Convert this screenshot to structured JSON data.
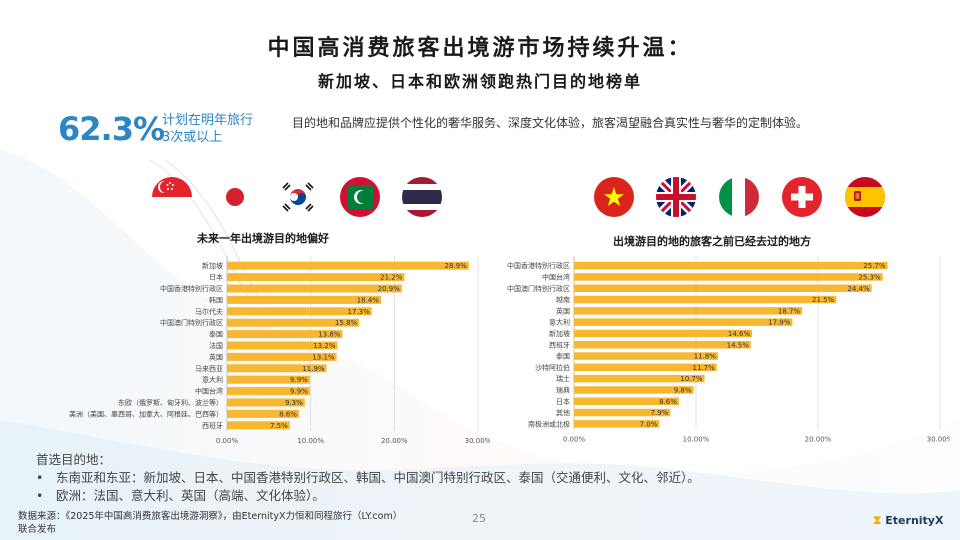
{
  "title": "中国高消费旅客出境游市场持续升温：",
  "subtitle": "新加坡、日本和欧洲领跑热门目的地榜单",
  "stat": {
    "value": "62.3%",
    "label_line1": "计划在明年旅行",
    "label_line2": "3次或以上",
    "description": "目的地和品牌应提供个性化的奢华服务、深度文化体验，旅客渴望融合真实性与奢华的定制体验。"
  },
  "flags_left": [
    "singapore-flag-icon",
    "japan-flag-icon",
    "korea-flag-icon",
    "maldives-flag-icon",
    "thailand-flag-icon"
  ],
  "flags_right": [
    "vietnam-flag-icon",
    "uk-flag-icon",
    "italy-flag-icon",
    "switzerland-flag-icon",
    "spain-flag-icon"
  ],
  "chart_data": [
    {
      "type": "bar",
      "orientation": "horizontal",
      "title": "未来一年出境游目的地偏好",
      "categories": [
        "新加坡",
        "日本",
        "中国香港特别行政区",
        "韩国",
        "马尔代夫",
        "中国澳门特别行政区",
        "泰国",
        "法国",
        "英国",
        "马来西亚",
        "意大利",
        "中国台湾",
        "东欧（俄罗斯、匈牙利、波兰等）",
        "美洲（美国、墨西哥、加拿大、阿根廷、巴西等）",
        "西班牙"
      ],
      "values": [
        28.9,
        21.2,
        20.9,
        18.4,
        17.3,
        15.8,
        13.8,
        13.2,
        13.1,
        11.9,
        9.9,
        9.9,
        9.3,
        8.6,
        7.5
      ],
      "value_labels": [
        "28.9%",
        "21.2%",
        "20.9%",
        "18.4%",
        "17.3%",
        "15.8%",
        "13.8%",
        "13.2%",
        "13.1%",
        "11.9%",
        "9.9%",
        "9.9%",
        "9.3%",
        "8.6%",
        "7.5%"
      ],
      "xlim": [
        0,
        30
      ],
      "xticks": [
        "0.00%",
        "10.00%",
        "20.00%",
        "30.00%"
      ],
      "bar_color": "#f7b731",
      "grid": true
    },
    {
      "type": "bar",
      "orientation": "horizontal",
      "title": "出境游目的地的旅客之前已经去过的地方",
      "categories": [
        "中国香港特别行政区",
        "中国台湾",
        "中国澳门特别行政区",
        "越南",
        "英国",
        "意大利",
        "新加坡",
        "西班牙",
        "泰国",
        "沙特阿拉伯",
        "瑞士",
        "瑞典",
        "日本",
        "其他",
        "南极洲或北极"
      ],
      "values": [
        25.7,
        25.3,
        24.4,
        21.5,
        18.7,
        17.9,
        14.6,
        14.5,
        11.8,
        11.7,
        10.7,
        9.8,
        8.6,
        7.9,
        7.0
      ],
      "value_labels": [
        "25.7%",
        "25.3%",
        "24.4%",
        "21.5%",
        "18.7%",
        "17.9%",
        "14.6%",
        "14.5%",
        "11.8%",
        "11.7%",
        "10.7%",
        "9.8%",
        "8.6%",
        "7.9%",
        "7.0%"
      ],
      "xlim": [
        0,
        30
      ],
      "xticks": [
        "0.00%",
        "10.00%",
        "20.00%",
        "30.00%"
      ],
      "bar_color": "#f7b731",
      "grid": true
    }
  ],
  "bullets": {
    "heading": "首选目的地：",
    "items": [
      "东南亚和东亚：新加坡、日本、中国香港特别行政区、韩国、中国澳门特别行政区、泰国（交通便利、文化、邻近）。",
      "欧洲：法国、意大利、英国（高端、文化体验）。"
    ]
  },
  "source": {
    "line1": "数据来源：《2025年中国高消费旅客出境游洞察》，由EternityX力恒和同程旅行（LY.com）",
    "line2": "联合发布"
  },
  "page_number": "25",
  "brand": "EternityX",
  "colors": {
    "accent": "#2a86c4",
    "bar": "#f7b731"
  }
}
